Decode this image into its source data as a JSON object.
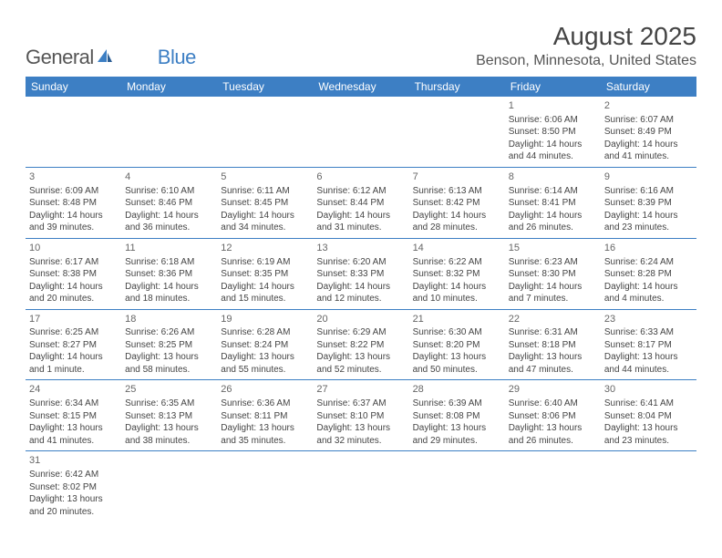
{
  "logo": {
    "text1": "General",
    "text2": "Blue"
  },
  "title": "August 2025",
  "location": "Benson, Minnesota, United States",
  "colors": {
    "header_bg": "#3d7fc4",
    "header_fg": "#ffffff",
    "border": "#3d7fc4",
    "text": "#444444"
  },
  "weekdays": [
    "Sunday",
    "Monday",
    "Tuesday",
    "Wednesday",
    "Thursday",
    "Friday",
    "Saturday"
  ],
  "weeks": [
    [
      null,
      null,
      null,
      null,
      null,
      {
        "day": "1",
        "sunrise": "Sunrise: 6:06 AM",
        "sunset": "Sunset: 8:50 PM",
        "daylight": "Daylight: 14 hours and 44 minutes."
      },
      {
        "day": "2",
        "sunrise": "Sunrise: 6:07 AM",
        "sunset": "Sunset: 8:49 PM",
        "daylight": "Daylight: 14 hours and 41 minutes."
      }
    ],
    [
      {
        "day": "3",
        "sunrise": "Sunrise: 6:09 AM",
        "sunset": "Sunset: 8:48 PM",
        "daylight": "Daylight: 14 hours and 39 minutes."
      },
      {
        "day": "4",
        "sunrise": "Sunrise: 6:10 AM",
        "sunset": "Sunset: 8:46 PM",
        "daylight": "Daylight: 14 hours and 36 minutes."
      },
      {
        "day": "5",
        "sunrise": "Sunrise: 6:11 AM",
        "sunset": "Sunset: 8:45 PM",
        "daylight": "Daylight: 14 hours and 34 minutes."
      },
      {
        "day": "6",
        "sunrise": "Sunrise: 6:12 AM",
        "sunset": "Sunset: 8:44 PM",
        "daylight": "Daylight: 14 hours and 31 minutes."
      },
      {
        "day": "7",
        "sunrise": "Sunrise: 6:13 AM",
        "sunset": "Sunset: 8:42 PM",
        "daylight": "Daylight: 14 hours and 28 minutes."
      },
      {
        "day": "8",
        "sunrise": "Sunrise: 6:14 AM",
        "sunset": "Sunset: 8:41 PM",
        "daylight": "Daylight: 14 hours and 26 minutes."
      },
      {
        "day": "9",
        "sunrise": "Sunrise: 6:16 AM",
        "sunset": "Sunset: 8:39 PM",
        "daylight": "Daylight: 14 hours and 23 minutes."
      }
    ],
    [
      {
        "day": "10",
        "sunrise": "Sunrise: 6:17 AM",
        "sunset": "Sunset: 8:38 PM",
        "daylight": "Daylight: 14 hours and 20 minutes."
      },
      {
        "day": "11",
        "sunrise": "Sunrise: 6:18 AM",
        "sunset": "Sunset: 8:36 PM",
        "daylight": "Daylight: 14 hours and 18 minutes."
      },
      {
        "day": "12",
        "sunrise": "Sunrise: 6:19 AM",
        "sunset": "Sunset: 8:35 PM",
        "daylight": "Daylight: 14 hours and 15 minutes."
      },
      {
        "day": "13",
        "sunrise": "Sunrise: 6:20 AM",
        "sunset": "Sunset: 8:33 PM",
        "daylight": "Daylight: 14 hours and 12 minutes."
      },
      {
        "day": "14",
        "sunrise": "Sunrise: 6:22 AM",
        "sunset": "Sunset: 8:32 PM",
        "daylight": "Daylight: 14 hours and 10 minutes."
      },
      {
        "day": "15",
        "sunrise": "Sunrise: 6:23 AM",
        "sunset": "Sunset: 8:30 PM",
        "daylight": "Daylight: 14 hours and 7 minutes."
      },
      {
        "day": "16",
        "sunrise": "Sunrise: 6:24 AM",
        "sunset": "Sunset: 8:28 PM",
        "daylight": "Daylight: 14 hours and 4 minutes."
      }
    ],
    [
      {
        "day": "17",
        "sunrise": "Sunrise: 6:25 AM",
        "sunset": "Sunset: 8:27 PM",
        "daylight": "Daylight: 14 hours and 1 minute."
      },
      {
        "day": "18",
        "sunrise": "Sunrise: 6:26 AM",
        "sunset": "Sunset: 8:25 PM",
        "daylight": "Daylight: 13 hours and 58 minutes."
      },
      {
        "day": "19",
        "sunrise": "Sunrise: 6:28 AM",
        "sunset": "Sunset: 8:24 PM",
        "daylight": "Daylight: 13 hours and 55 minutes."
      },
      {
        "day": "20",
        "sunrise": "Sunrise: 6:29 AM",
        "sunset": "Sunset: 8:22 PM",
        "daylight": "Daylight: 13 hours and 52 minutes."
      },
      {
        "day": "21",
        "sunrise": "Sunrise: 6:30 AM",
        "sunset": "Sunset: 8:20 PM",
        "daylight": "Daylight: 13 hours and 50 minutes."
      },
      {
        "day": "22",
        "sunrise": "Sunrise: 6:31 AM",
        "sunset": "Sunset: 8:18 PM",
        "daylight": "Daylight: 13 hours and 47 minutes."
      },
      {
        "day": "23",
        "sunrise": "Sunrise: 6:33 AM",
        "sunset": "Sunset: 8:17 PM",
        "daylight": "Daylight: 13 hours and 44 minutes."
      }
    ],
    [
      {
        "day": "24",
        "sunrise": "Sunrise: 6:34 AM",
        "sunset": "Sunset: 8:15 PM",
        "daylight": "Daylight: 13 hours and 41 minutes."
      },
      {
        "day": "25",
        "sunrise": "Sunrise: 6:35 AM",
        "sunset": "Sunset: 8:13 PM",
        "daylight": "Daylight: 13 hours and 38 minutes."
      },
      {
        "day": "26",
        "sunrise": "Sunrise: 6:36 AM",
        "sunset": "Sunset: 8:11 PM",
        "daylight": "Daylight: 13 hours and 35 minutes."
      },
      {
        "day": "27",
        "sunrise": "Sunrise: 6:37 AM",
        "sunset": "Sunset: 8:10 PM",
        "daylight": "Daylight: 13 hours and 32 minutes."
      },
      {
        "day": "28",
        "sunrise": "Sunrise: 6:39 AM",
        "sunset": "Sunset: 8:08 PM",
        "daylight": "Daylight: 13 hours and 29 minutes."
      },
      {
        "day": "29",
        "sunrise": "Sunrise: 6:40 AM",
        "sunset": "Sunset: 8:06 PM",
        "daylight": "Daylight: 13 hours and 26 minutes."
      },
      {
        "day": "30",
        "sunrise": "Sunrise: 6:41 AM",
        "sunset": "Sunset: 8:04 PM",
        "daylight": "Daylight: 13 hours and 23 minutes."
      }
    ],
    [
      {
        "day": "31",
        "sunrise": "Sunrise: 6:42 AM",
        "sunset": "Sunset: 8:02 PM",
        "daylight": "Daylight: 13 hours and 20 minutes."
      },
      null,
      null,
      null,
      null,
      null,
      null
    ]
  ]
}
